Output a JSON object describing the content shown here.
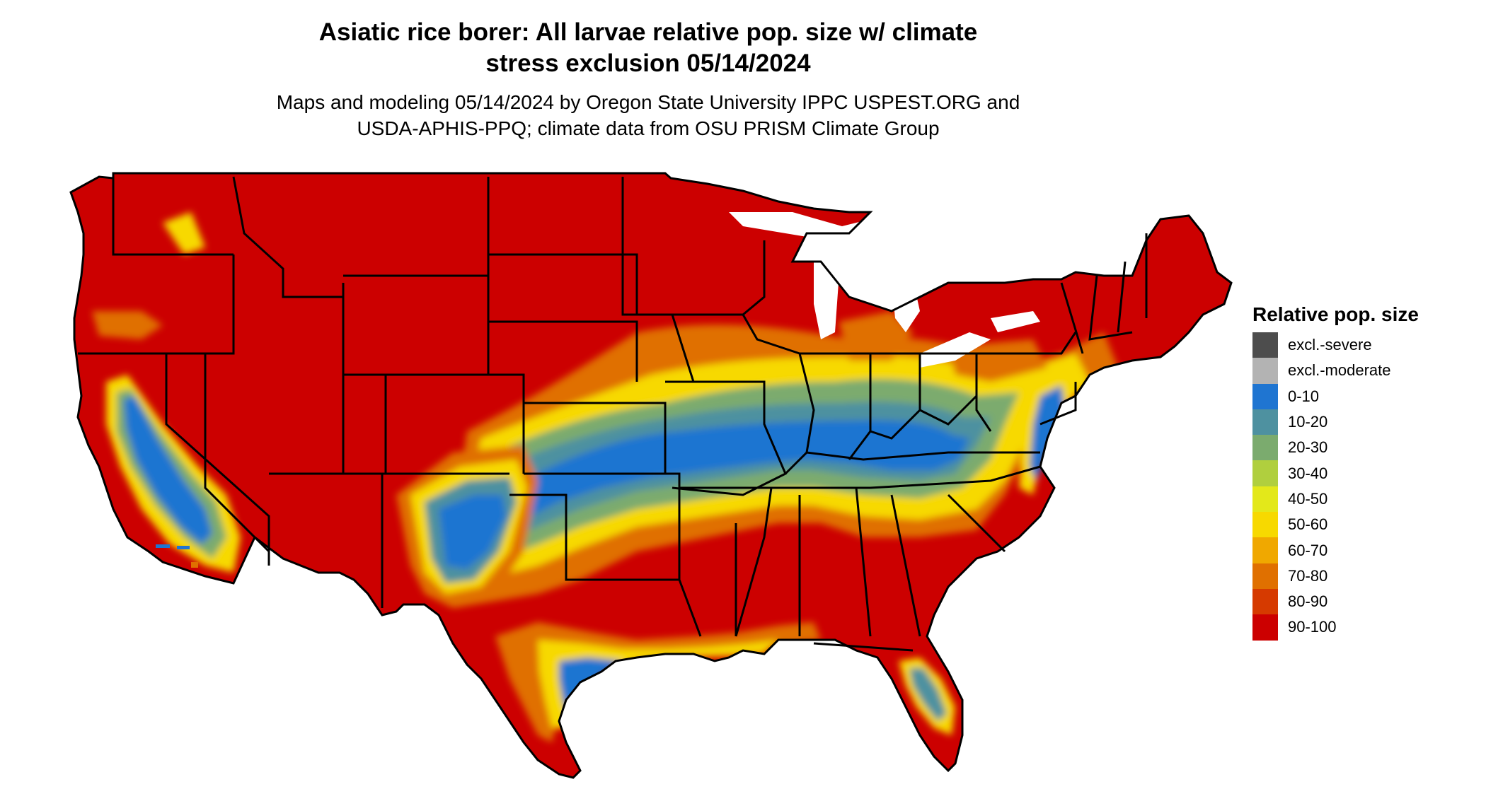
{
  "title": {
    "line1": "Asiatic rice borer: All larvae relative pop. size w/ climate",
    "line2": "stress exclusion 05/14/2024"
  },
  "subtitle": {
    "line1": "Maps and modeling 05/14/2024 by Oregon State University IPPC USPEST.ORG and",
    "line2": "USDA-APHIS-PPQ; climate data from OSU PRISM Climate Group"
  },
  "map": {
    "region": "Contiguous United States",
    "boundaries": "state borders",
    "base_color": "#cc0000",
    "bands": [
      {
        "class": "0-10",
        "color": "#1f75d1"
      },
      {
        "class": "10-20",
        "color": "#4e91a0"
      },
      {
        "class": "20-30",
        "color": "#7bab6e"
      },
      {
        "class": "40-50",
        "color": "#e3e81a"
      },
      {
        "class": "50-60",
        "color": "#f7d900"
      },
      {
        "class": "70-80",
        "color": "#e07000"
      }
    ]
  },
  "legend": {
    "title": "Relative pop. size",
    "items": [
      {
        "label": "excl.-severe",
        "color": "#4d4d4d"
      },
      {
        "label": "excl.-moderate",
        "color": "#b3b3b3"
      },
      {
        "label": "0-10",
        "color": "#1f75d1"
      },
      {
        "label": "10-20",
        "color": "#4e91a0"
      },
      {
        "label": "20-30",
        "color": "#7bab6e"
      },
      {
        "label": "30-40",
        "color": "#b0cf3e"
      },
      {
        "label": "40-50",
        "color": "#e3e81a"
      },
      {
        "label": "50-60",
        "color": "#f7d900"
      },
      {
        "label": "60-70",
        "color": "#f0a800"
      },
      {
        "label": "70-80",
        "color": "#e07000"
      },
      {
        "label": "80-90",
        "color": "#d63a00"
      },
      {
        "label": "90-100",
        "color": "#cc0000"
      }
    ]
  }
}
